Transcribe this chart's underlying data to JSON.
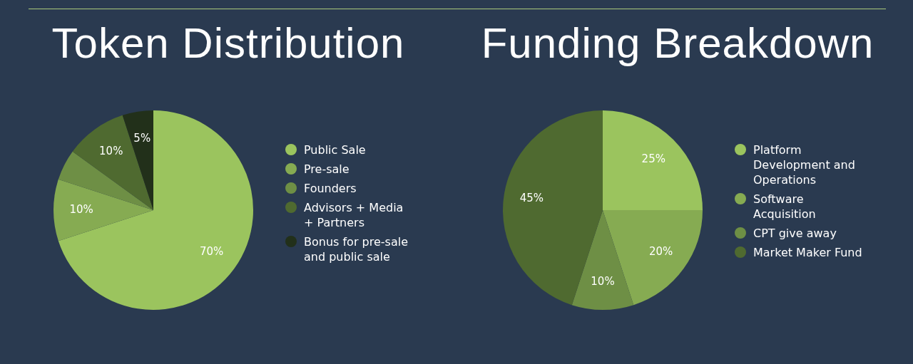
{
  "chart_data": [
    {
      "type": "pie",
      "title": "Token Distribution",
      "categories": [
        "Public Sale",
        "Pre-sale",
        "Founders",
        "Advisors + Media + Partners",
        "Bonus for pre-sale and public sale"
      ],
      "values": [
        70,
        10,
        5,
        10,
        5
      ],
      "value_labels": [
        "70%",
        "10%",
        null,
        "10%",
        "5%"
      ],
      "colors": [
        "#9bc45e",
        "#86ab52",
        "#6e8f45",
        "#4f6a30",
        "#22301a"
      ],
      "legend": "right"
    },
    {
      "type": "pie",
      "title": "Funding Breakdown",
      "categories": [
        "Platform Development and Operations",
        "Software Acquisition",
        "CPT give away",
        "Market Maker Fund"
      ],
      "values": [
        25,
        20,
        10,
        45
      ],
      "value_labels": [
        "25%",
        "20%",
        "10%",
        "45%"
      ],
      "colors": [
        "#9bc45e",
        "#86ab52",
        "#6e8f45",
        "#4f6a30"
      ],
      "legend": "right"
    }
  ]
}
